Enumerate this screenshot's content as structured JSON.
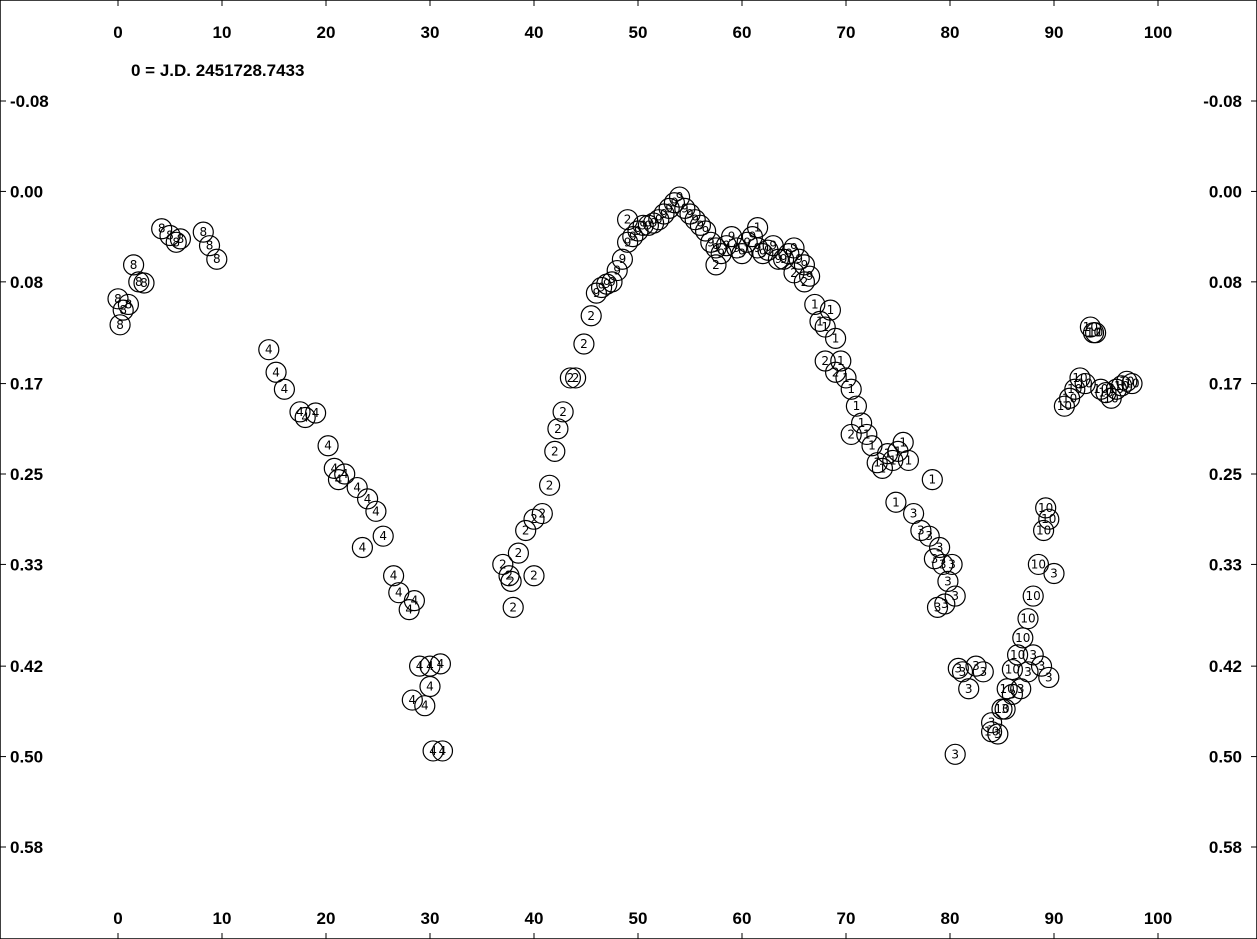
{
  "chart_data": {
    "type": "scatter",
    "title": "",
    "xlabel": "",
    "ylabel": "",
    "annotation": "0 = J.D. 2451728.7433",
    "xlim": [
      0,
      100
    ],
    "ylim": [
      -0.08,
      0.58
    ],
    "y_inverted": true,
    "grid": false,
    "x_ticks": [
      "0",
      "10",
      "20",
      "30",
      "40",
      "50",
      "60",
      "70",
      "80",
      "90",
      "100"
    ],
    "y_ticks": [
      "-0.08",
      "0.00",
      "0.08",
      "0.17",
      "0.25",
      "0.33",
      "0.42",
      "0.50",
      "0.58"
    ],
    "marker_color": "#000000",
    "series": [
      {
        "marker": "8",
        "x": [
          0.0,
          0.5,
          1.0,
          1.5,
          0.2,
          2.0,
          2.5,
          8.2,
          8.8,
          9.5,
          4.2,
          5.0,
          5.6,
          6.0
        ],
        "y": [
          0.095,
          0.105,
          0.1,
          0.065,
          0.118,
          0.08,
          0.081,
          0.036,
          0.048,
          0.06,
          0.033,
          0.039,
          0.045,
          0.042
        ]
      },
      {
        "marker": "4",
        "x": [
          14.5,
          15.2,
          16.0,
          17.5,
          18.0,
          19.0,
          20.2,
          20.8,
          21.2,
          21.8,
          23.0,
          24.0,
          24.8,
          23.5,
          25.5,
          26.5,
          27.0,
          28.0,
          28.5,
          29.0,
          30.0,
          31.0,
          30.0,
          28.3,
          29.5,
          30.3,
          31.2
        ],
        "y": [
          0.14,
          0.16,
          0.175,
          0.195,
          0.2,
          0.196,
          0.225,
          0.245,
          0.255,
          0.25,
          0.262,
          0.272,
          0.283,
          0.315,
          0.305,
          0.34,
          0.355,
          0.37,
          0.362,
          0.42,
          0.42,
          0.418,
          0.438,
          0.45,
          0.455,
          0.495,
          0.495
        ]
      },
      {
        "marker": "2",
        "x": [
          37.0,
          37.8,
          38.5,
          39.2,
          40.0,
          40.8,
          41.5,
          42.0,
          42.3,
          42.8,
          43.5,
          44.0,
          44.8,
          45.5,
          38.0,
          40.0,
          37.6,
          49.0,
          57.5,
          65.0,
          66.0,
          68.0,
          69.0,
          70.5
        ],
        "y": [
          0.33,
          0.345,
          0.32,
          0.3,
          0.29,
          0.285,
          0.26,
          0.23,
          0.21,
          0.195,
          0.165,
          0.165,
          0.135,
          0.11,
          0.368,
          0.34,
          0.34,
          0.025,
          0.065,
          0.072,
          0.08,
          0.15,
          0.16,
          0.215
        ]
      },
      {
        "marker": "9",
        "x": [
          46.0,
          46.5,
          47.0,
          47.5,
          48.0,
          48.5,
          49.0,
          49.5,
          50.0,
          50.5,
          51.0,
          51.5,
          52.0,
          52.5,
          53.0,
          53.5,
          54.0,
          54.5,
          55.0,
          55.5,
          56.0,
          56.5,
          57.0,
          57.5,
          58.0,
          58.5,
          59.0,
          59.5,
          60.0,
          60.5,
          61.0,
          61.5,
          62.0,
          62.5,
          63.0,
          63.5,
          64.0,
          64.5,
          65.0,
          65.5,
          66.0,
          66.5
        ],
        "y": [
          0.09,
          0.085,
          0.082,
          0.08,
          0.07,
          0.06,
          0.045,
          0.04,
          0.035,
          0.03,
          0.03,
          0.028,
          0.025,
          0.02,
          0.015,
          0.01,
          0.005,
          0.015,
          0.02,
          0.025,
          0.03,
          0.035,
          0.045,
          0.05,
          0.055,
          0.048,
          0.04,
          0.05,
          0.055,
          0.045,
          0.04,
          0.05,
          0.055,
          0.052,
          0.048,
          0.06,
          0.06,
          0.055,
          0.05,
          0.06,
          0.065,
          0.075
        ]
      },
      {
        "marker": "1",
        "x": [
          61.5,
          67.0,
          67.5,
          68.0,
          68.5,
          69.0,
          69.5,
          70.0,
          70.5,
          71.0,
          71.5,
          72.0,
          72.5,
          73.0,
          73.5,
          74.0,
          74.5,
          75.0,
          75.5,
          76.0,
          74.8,
          78.3
        ],
        "y": [
          0.032,
          0.1,
          0.115,
          0.12,
          0.105,
          0.13,
          0.15,
          0.165,
          0.175,
          0.19,
          0.205,
          0.215,
          0.225,
          0.24,
          0.245,
          0.232,
          0.238,
          0.23,
          0.222,
          0.238,
          0.275,
          0.255
        ]
      },
      {
        "marker": "3",
        "x": [
          76.5,
          77.2,
          78.0,
          78.5,
          79.0,
          79.3,
          79.8,
          80.2,
          80.5,
          80.8,
          81.2,
          81.8,
          82.5,
          83.2,
          84.0,
          84.6,
          85.3,
          86.0,
          86.8,
          87.5,
          88.0,
          88.8,
          89.5,
          90.0,
          78.8,
          79.5,
          80.5
        ],
        "y": [
          0.285,
          0.3,
          0.305,
          0.325,
          0.315,
          0.33,
          0.345,
          0.33,
          0.358,
          0.422,
          0.425,
          0.44,
          0.42,
          0.425,
          0.47,
          0.48,
          0.458,
          0.445,
          0.44,
          0.425,
          0.41,
          0.42,
          0.43,
          0.338,
          0.368,
          0.365,
          0.498
        ]
      },
      {
        "marker": "10",
        "x": [
          84.0,
          85.0,
          85.5,
          86.0,
          86.5,
          87.0,
          87.5,
          88.0,
          88.5,
          89.0,
          89.5,
          89.2,
          91.0,
          91.5,
          92.0,
          92.5,
          93.0,
          93.5,
          94.0,
          94.5,
          95.0,
          95.5,
          96.0,
          96.5,
          97.0,
          97.5,
          93.8
        ],
        "y": [
          0.478,
          0.458,
          0.44,
          0.423,
          0.41,
          0.395,
          0.378,
          0.358,
          0.33,
          0.3,
          0.29,
          0.28,
          0.19,
          0.183,
          0.175,
          0.165,
          0.17,
          0.12,
          0.125,
          0.175,
          0.178,
          0.183,
          0.175,
          0.172,
          0.168,
          0.17,
          0.125
        ]
      }
    ]
  }
}
